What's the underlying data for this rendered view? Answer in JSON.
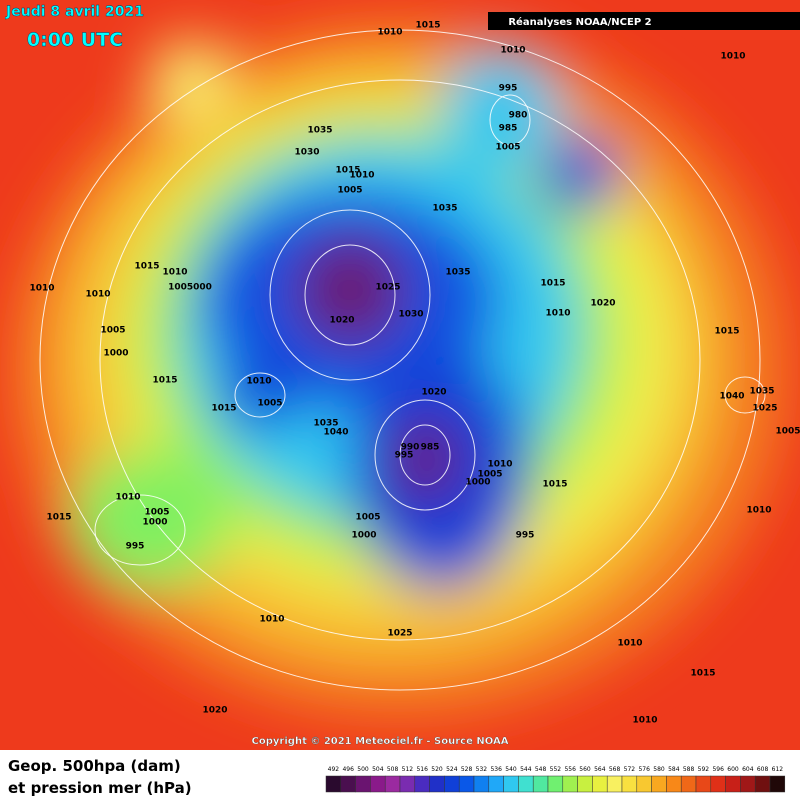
{
  "header": {
    "date": "Jeudi 8 avril 2021",
    "time": "0:00 UTC",
    "source": "Réanalyses NOAA/NCEP 2"
  },
  "footer": {
    "copyright": "Copyright © 2021 Meteociel.fr - Source NOAA"
  },
  "legend": {
    "line1": "Geop. 500hpa (dam)",
    "line2": "et pression mer (hPa)",
    "values": [
      492,
      496,
      500,
      504,
      508,
      512,
      516,
      520,
      524,
      528,
      532,
      536,
      540,
      544,
      548,
      552,
      556,
      560,
      564,
      568,
      572,
      576,
      580,
      584,
      588,
      592,
      596,
      600,
      604,
      608,
      612
    ],
    "colors": [
      "#2a0a2e",
      "#4a0f4f",
      "#6a1470",
      "#8a1a8a",
      "#9b2aa0",
      "#7a2cb0",
      "#4a2cc0",
      "#2030c8",
      "#1040d8",
      "#0a58e8",
      "#1080f0",
      "#20a8f8",
      "#30c8f0",
      "#40e0d0",
      "#50e8a0",
      "#70f070",
      "#a0f050",
      "#c8f040",
      "#e8f040",
      "#f8f060",
      "#f8e040",
      "#f8c830",
      "#f8a820",
      "#f88818",
      "#f06818",
      "#e84818",
      "#e03018",
      "#c82018",
      "#a01818",
      "#701010",
      "#200808"
    ]
  },
  "isobar_labels": [
    1015,
    1010,
    1010,
    1010,
    995,
    980,
    985,
    1005,
    1035,
    1030,
    1015,
    1010,
    1005,
    1035,
    1015,
    1010,
    1010,
    1010,
    1005000,
    1025,
    1035,
    1015,
    1020,
    1010,
    1030,
    1020,
    1005,
    1000,
    1015,
    1015,
    1010,
    1005,
    1015,
    1020,
    1035,
    1040,
    1040,
    1035,
    1025,
    1005,
    990,
    985,
    995,
    1010,
    1005,
    1000,
    1015,
    1010,
    1005,
    1000,
    1015,
    1005,
    1000,
    995,
    995,
    1010,
    1010,
    1025,
    1010,
    1015,
    1020,
    1010
  ]
}
